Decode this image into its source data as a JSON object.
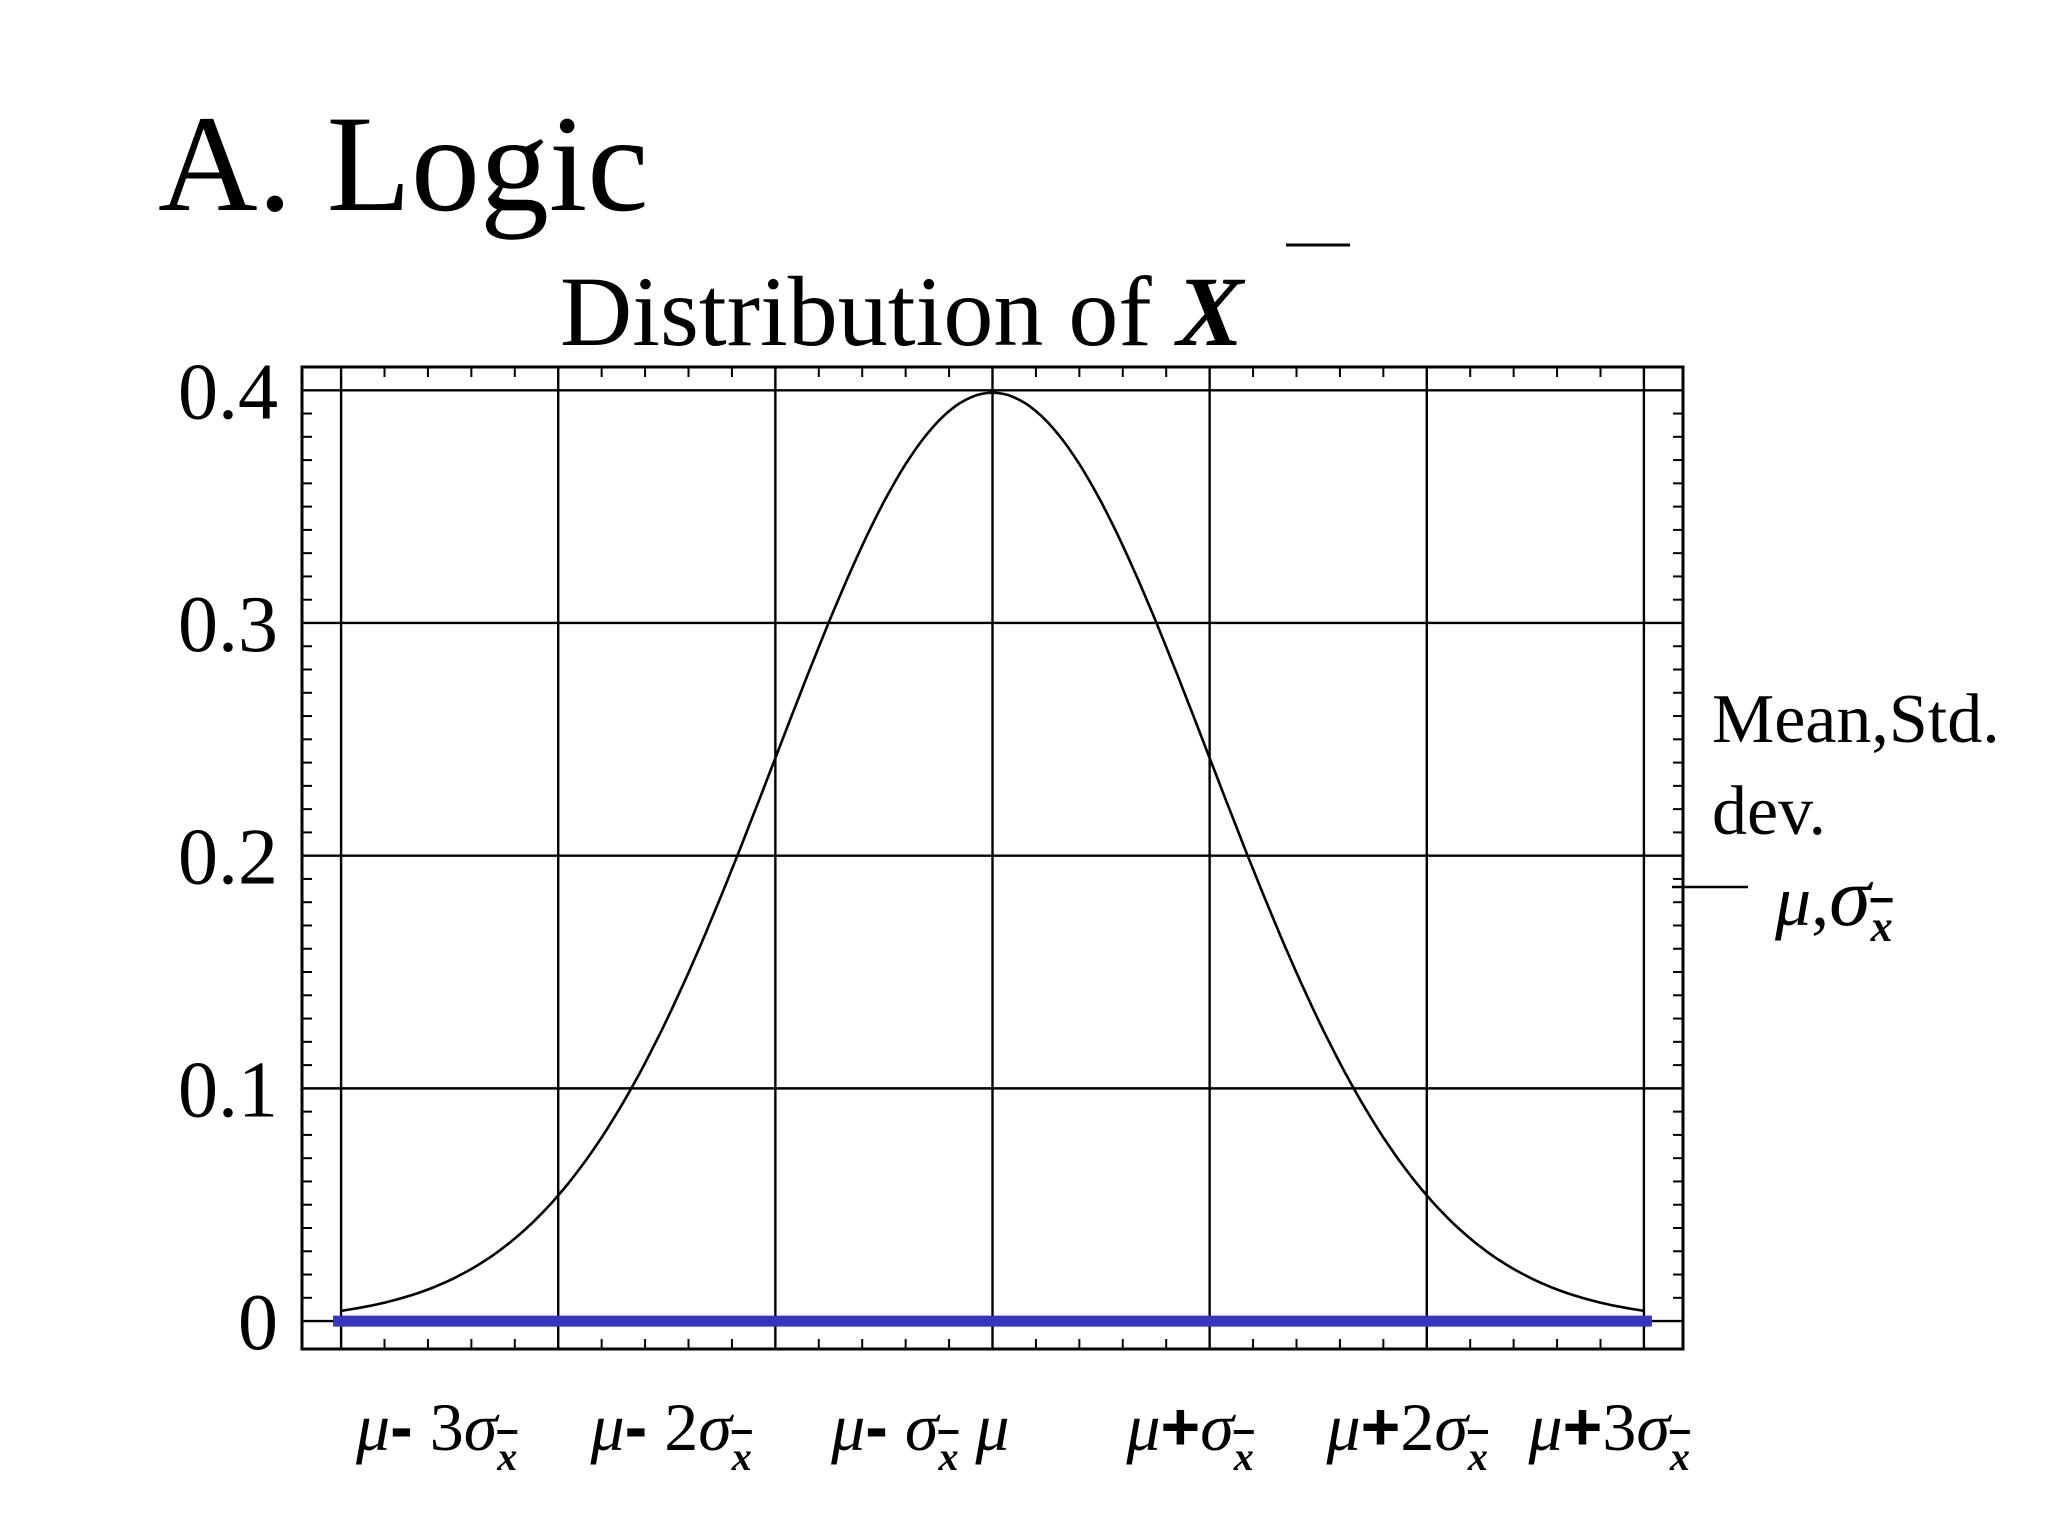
{
  "slide": {
    "heading": "A. Logic"
  },
  "chart_data": {
    "type": "line",
    "title": {
      "prefix": "Distribution of ",
      "symbol": "X"
    },
    "xlabel": "",
    "ylabel": "",
    "x": [
      -3,
      -2,
      -1,
      0,
      1,
      2,
      3
    ],
    "x_tick_labels": [
      {
        "mu": "μ",
        "op": "-",
        "coef": " 3",
        "sigma": "σ",
        "sub": "x"
      },
      {
        "mu": "μ",
        "op": "-",
        "coef": " 2",
        "sigma": "σ",
        "sub": "x"
      },
      {
        "mu": "μ",
        "op": "-",
        "coef": " ",
        "sigma": "σ",
        "sub": "x"
      },
      {
        "mu": "μ",
        "op": "",
        "coef": "",
        "sigma": "",
        "sub": ""
      },
      {
        "mu": "μ",
        "op": "+",
        "coef": "",
        "sigma": "σ",
        "sub": "x"
      },
      {
        "mu": "μ",
        "op": "+",
        "coef": "2",
        "sigma": "σ",
        "sub": "x"
      },
      {
        "mu": "μ",
        "op": "+",
        "coef": "3",
        "sigma": "σ",
        "sub": "x"
      }
    ],
    "xlim": [
      -3.18,
      3.18
    ],
    "ylim": [
      -0.012,
      0.41
    ],
    "y_ticks": [
      0,
      0.1,
      0.2,
      0.3,
      0.4
    ],
    "y_tick_labels": [
      "0",
      "0.1",
      "0.2",
      "0.3",
      "0.4"
    ],
    "grid": true,
    "series": [
      {
        "name": "",
        "curve": "standard normal density",
        "x_range": [
          -3,
          3
        ],
        "color": "#000000"
      }
    ],
    "baseline": {
      "y": 0,
      "x_range": [
        -3,
        3
      ],
      "color": "#3535c0"
    },
    "annotation": {
      "lines": [
        "Mean,Std.",
        " dev."
      ],
      "params": {
        "mu": "μ",
        "sep": ",",
        "sigma": "σ",
        "sub": "x"
      }
    }
  }
}
